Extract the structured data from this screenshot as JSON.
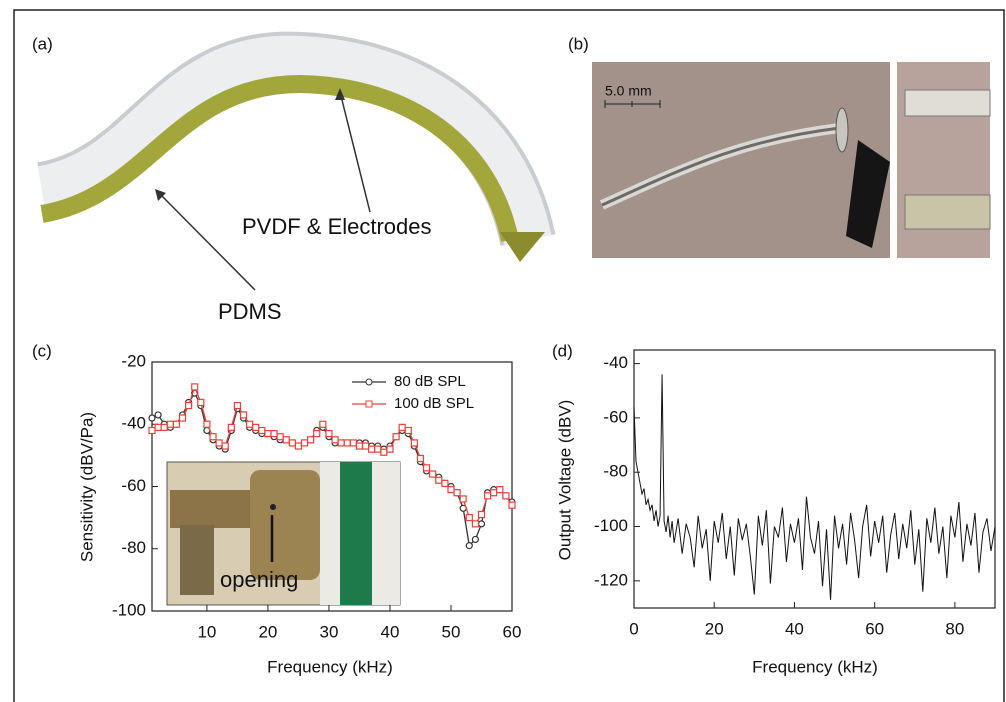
{
  "panels": {
    "a": {
      "label": "(a)",
      "annotations": [
        "PVDF & Electrodes",
        "PDMS"
      ]
    },
    "b": {
      "label": "(b)",
      "scale_bar": "5.0 mm"
    },
    "c": {
      "label": "(c)",
      "inset_label": "opening"
    },
    "d": {
      "label": "(d)"
    }
  },
  "chart_data": [
    {
      "type": "line",
      "xlabel": "Frequency (kHz)",
      "ylabel": "Sensitivity (dBV/Pa)",
      "x": [
        1,
        2,
        3,
        4,
        5,
        6,
        7,
        8,
        9,
        10,
        11,
        12,
        13,
        14,
        15,
        16,
        17,
        18,
        19,
        20,
        21,
        22,
        23,
        24,
        25,
        26,
        27,
        28,
        29,
        30,
        31,
        32,
        33,
        34,
        35,
        36,
        37,
        38,
        39,
        40,
        41,
        42,
        43,
        44,
        45,
        46,
        47,
        48,
        49,
        50,
        51,
        52,
        53,
        54,
        55,
        56,
        57,
        58,
        59,
        60
      ],
      "series": [
        {
          "name": "80 dB SPL",
          "color": "#333333",
          "marker": "circle",
          "values": [
            -38,
            -37,
            -40,
            -41,
            -40,
            -37,
            -33,
            -30,
            -34,
            -42,
            -45,
            -47,
            -48,
            -42,
            -35,
            -38,
            -41,
            -42,
            -43,
            -43,
            -44,
            -45,
            -45,
            -46,
            -47,
            -46,
            -45,
            -42,
            -41,
            -44,
            -46,
            -46,
            -46,
            -46,
            -46,
            -46,
            -47,
            -47,
            -48,
            -47,
            -44,
            -42,
            -43,
            -47,
            -52,
            -55,
            -56,
            -57,
            -59,
            -60,
            -62,
            -67,
            -79,
            -77,
            -72,
            -62,
            -61,
            -61,
            -63,
            -65
          ]
        },
        {
          "name": "100 dB SPL",
          "color": "#e8413c",
          "marker": "square",
          "values": [
            -42,
            -41,
            -41,
            -40,
            -40,
            -38,
            -34,
            -28,
            -33,
            -40,
            -44,
            -46,
            -47,
            -41,
            -34,
            -37,
            -40,
            -41,
            -42,
            -43,
            -43,
            -44,
            -45,
            -46,
            -47,
            -46,
            -45,
            -43,
            -40,
            -43,
            -45,
            -46,
            -46,
            -46,
            -47,
            -47,
            -48,
            -48,
            -49,
            -48,
            -44,
            -41,
            -42,
            -46,
            -51,
            -54,
            -56,
            -58,
            -59,
            -61,
            -62,
            -64,
            -70,
            -72,
            -69,
            -63,
            -62,
            -61,
            -63,
            -66
          ]
        }
      ],
      "xlim": [
        1,
        60
      ],
      "ylim": [
        -100,
        -20
      ],
      "xticks": [
        10,
        20,
        30,
        40,
        50,
        60
      ],
      "yticks": [
        -20,
        -40,
        -60,
        -80,
        -100
      ],
      "legend": "upper right"
    },
    {
      "type": "line",
      "xlabel": "Frequency (kHz)",
      "ylabel": "Output Voltage (dBV)",
      "x": [
        0,
        0.5,
        1,
        1.5,
        2,
        2.5,
        3,
        3.5,
        4,
        4.5,
        5,
        5.5,
        6,
        6.5,
        7,
        7.5,
        8,
        8.5,
        9,
        9.5,
        10,
        11,
        12,
        13,
        14,
        15,
        16,
        17,
        18,
        19,
        20,
        21,
        22,
        23,
        24,
        25,
        26,
        27,
        28,
        29,
        30,
        31,
        32,
        33,
        34,
        35,
        36,
        37,
        38,
        39,
        40,
        41,
        42,
        43,
        44,
        45,
        46,
        47,
        48,
        49,
        50,
        51,
        52,
        53,
        54,
        55,
        56,
        57,
        58,
        59,
        60,
        61,
        62,
        63,
        64,
        65,
        66,
        67,
        68,
        69,
        70,
        71,
        72,
        73,
        74,
        75,
        76,
        77,
        78,
        79,
        80,
        81,
        82,
        83,
        84,
        85,
        86,
        87,
        88,
        89,
        90
      ],
      "series": [
        {
          "color": "#111111",
          "values": [
            -56,
            -76,
            -80,
            -84,
            -88,
            -86,
            -92,
            -90,
            -94,
            -92,
            -98,
            -94,
            -100,
            -96,
            -44,
            -98,
            -102,
            -96,
            -104,
            -98,
            -106,
            -97,
            -110,
            -99,
            -104,
            -115,
            -96,
            -108,
            -101,
            -120,
            -98,
            -106,
            -95,
            -112,
            -100,
            -118,
            -97,
            -105,
            -99,
            -111,
            -125,
            -96,
            -107,
            -94,
            -121,
            -100,
            -104,
            -93,
            -113,
            -99,
            -106,
            -97,
            -116,
            -89,
            -104,
            -110,
            -98,
            -122,
            -101,
            -127,
            -96,
            -108,
            -99,
            -114,
            -95,
            -105,
            -119,
            -100,
            -92,
            -111,
            -98,
            -106,
            -96,
            -117,
            -103,
            -95,
            -112,
            -99,
            -108,
            -94,
            -114,
            -101,
            -124,
            -97,
            -106,
            -93,
            -110,
            -100,
            -119,
            -96,
            -104,
            -91,
            -113,
            -99,
            -107,
            -95,
            -117,
            -102,
            -97,
            -109,
            -100
          ]
        }
      ],
      "xlim": [
        0,
        90
      ],
      "ylim": [
        -130,
        -35
      ],
      "xticks": [
        0,
        20,
        40,
        60,
        80
      ],
      "yticks": [
        -40,
        -60,
        -80,
        -100,
        -120
      ]
    }
  ]
}
